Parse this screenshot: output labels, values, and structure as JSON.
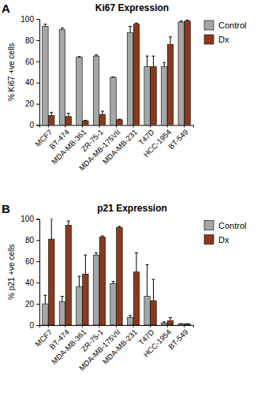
{
  "chart_data": [
    {
      "type": "bar",
      "title": "Ki67 Expression",
      "annotations": [
        "A"
      ],
      "y_label": "% Ki67 +ve cells",
      "categories": [
        "MCF7",
        "BT-474",
        "MDA-MB-361",
        "ZR-75-1",
        "MDA-MB-175VII",
        "MDA-MB-231",
        "T47D",
        "HCC-1954",
        "BT-549"
      ],
      "series": [
        {
          "name": "Control",
          "color": "#a6a6a6",
          "values": [
            93,
            90,
            64,
            65,
            45,
            87,
            55,
            55,
            97
          ],
          "errors": [
            2,
            1.5,
            0.5,
            1,
            0.3,
            6,
            10,
            4,
            1
          ]
        },
        {
          "name": "Dx",
          "color": "#8b3a1c",
          "values": [
            9,
            8,
            4,
            10,
            5,
            95,
            55,
            76,
            98
          ],
          "errors": [
            3,
            3,
            0.5,
            3,
            0.5,
            1,
            10,
            7,
            1
          ]
        }
      ],
      "ylim": [
        0,
        100
      ],
      "yticks": [
        0,
        20,
        40,
        60,
        80,
        100
      ],
      "legend": "right"
    },
    {
      "type": "bar",
      "title": "p21 Expression",
      "annotations": [
        "B"
      ],
      "y_label": "% p21 +ve cells",
      "categories": [
        "MCF7",
        "BT-474",
        "MDA-MB-361",
        "ZR-75-1",
        "MDA-MB-175VII",
        "MDA-MB-231",
        "T47D",
        "HCC-1954",
        "BT-549"
      ],
      "series": [
        {
          "name": "Control",
          "color": "#a6a6a6",
          "values": [
            20,
            22,
            36,
            66,
            39,
            7,
            27,
            2,
            1
          ],
          "errors": [
            8,
            5,
            10,
            2,
            2,
            2,
            30,
            1,
            0.3
          ]
        },
        {
          "name": "Dx",
          "color": "#8b3a1c",
          "values": [
            81,
            94,
            48,
            83,
            92,
            50,
            23,
            4,
            1
          ],
          "errors": [
            19,
            4,
            18,
            1,
            1,
            18,
            20,
            3,
            0.3
          ]
        }
      ],
      "ylim": [
        0,
        100
      ],
      "yticks": [
        0,
        20,
        40,
        60,
        80,
        100
      ],
      "legend": "right"
    }
  ]
}
